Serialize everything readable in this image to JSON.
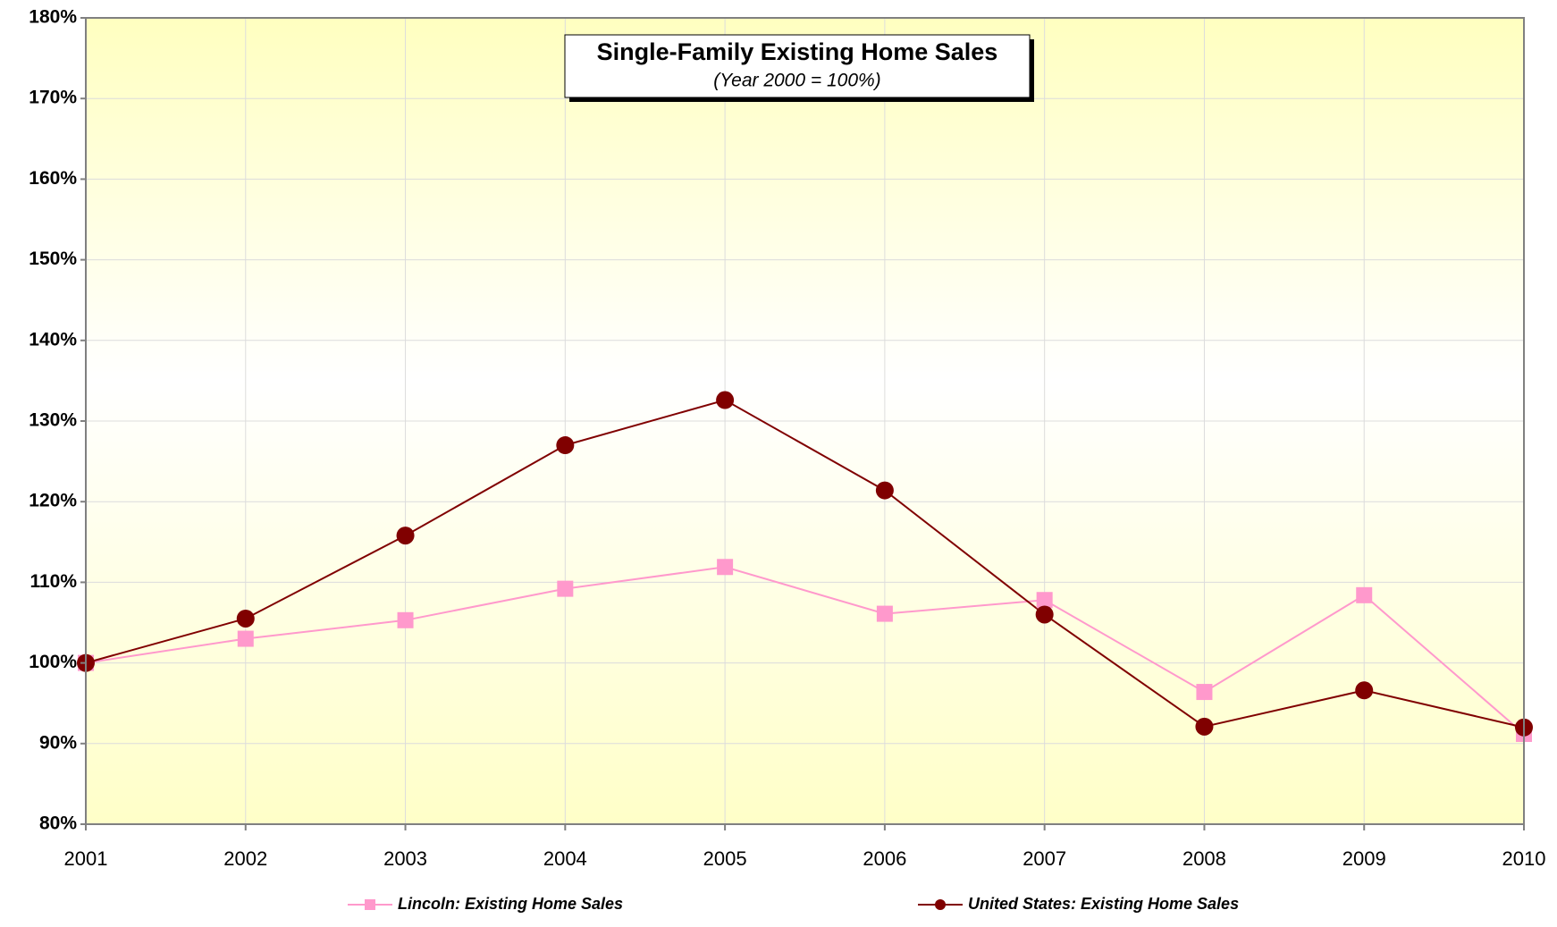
{
  "chart_data": {
    "type": "line",
    "title": "Single-Family Existing Home Sales",
    "subtitle": "(Year 2000 = 100%)",
    "categories": [
      "2001",
      "2002",
      "2003",
      "2004",
      "2005",
      "2006",
      "2007",
      "2008",
      "2009",
      "2010"
    ],
    "series": [
      {
        "name": "Lincoln: Existing Home Sales",
        "color": "#ff99cc",
        "marker": "square",
        "values": [
          100,
          103,
          105.3,
          109.2,
          111.9,
          106.1,
          107.8,
          96.4,
          108.4,
          91.2
        ]
      },
      {
        "name": "United States: Existing Home Sales",
        "color": "#800000",
        "marker": "circle",
        "values": [
          100,
          105.5,
          115.8,
          127,
          132.6,
          121.4,
          106,
          92.1,
          96.6,
          92
        ]
      }
    ],
    "ylim": [
      80,
      180
    ],
    "yticks": [
      {
        "value": 80,
        "label": "80%"
      },
      {
        "value": 90,
        "label": "90%"
      },
      {
        "value": 100,
        "label": "100%"
      },
      {
        "value": 110,
        "label": "110%"
      },
      {
        "value": 120,
        "label": "120%"
      },
      {
        "value": 130,
        "label": "130%"
      },
      {
        "value": 140,
        "label": "140%"
      },
      {
        "value": 150,
        "label": "150%"
      },
      {
        "value": 160,
        "label": "160%"
      },
      {
        "value": 170,
        "label": "170%"
      },
      {
        "value": 180,
        "label": "180%"
      }
    ],
    "grid": true,
    "legend": "bottom"
  }
}
